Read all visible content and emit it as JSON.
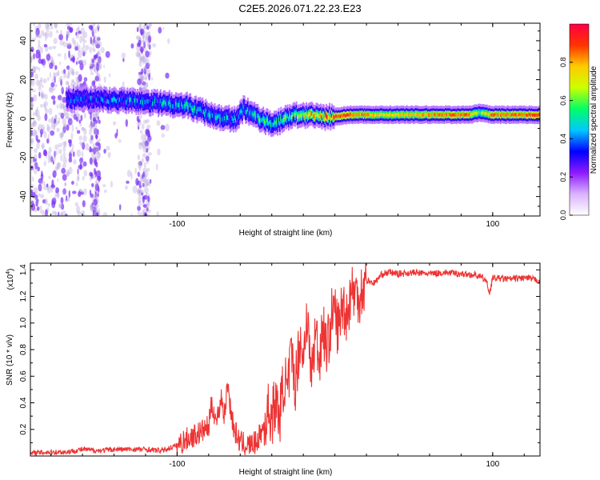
{
  "figure_title": "C2E5.2026.071.22.23.E23",
  "colors": {
    "snr_line": "#ee3333",
    "axis": "#000000",
    "noise": "#b39ddb",
    "noise_dark": "#7b2ff7"
  },
  "colormap": [
    "#ffffff",
    "#d9b3ff",
    "#8c1aff",
    "#0000ff",
    "#00c8ff",
    "#00ff66",
    "#ccff00",
    "#ffcc00",
    "#ff3300",
    "#ff0044"
  ],
  "chart_data": [
    {
      "type": "heatmap",
      "title": "",
      "xlabel": "Height of straight line (km)",
      "ylabel": "Frequency (Hz)",
      "xlim": [
        -193,
        130
      ],
      "ylim": [
        -50,
        49
      ],
      "xticks": [
        -100,
        100
      ],
      "xtick_labels": [
        "-100",
        "100"
      ],
      "yticks": [
        -40,
        -20,
        0,
        20,
        40
      ],
      "ytick_labels": [
        "-40",
        "-20",
        "0",
        "20",
        "40"
      ],
      "colorbar": {
        "label": "Normalized spectral amplitude",
        "range": [
          0,
          1
        ],
        "ticks": [
          0.0,
          0.2,
          0.4,
          0.6,
          0.8
        ],
        "tick_labels": [
          "0.0",
          "0.2",
          "0.4",
          "0.6",
          "0.8"
        ]
      },
      "ridge": {
        "description": "frequency of peak spectral amplitude vs height",
        "x": [
          -170,
          -150,
          -130,
          -110,
          -95,
          -85,
          -75,
          -68,
          -62,
          -58,
          -52,
          -45,
          -38,
          -30,
          -22,
          -10,
          0,
          10,
          30,
          50,
          70,
          85,
          92,
          100,
          115,
          130
        ],
        "y": [
          10,
          10,
          9,
          8,
          7,
          4,
          1,
          0,
          0,
          5,
          2,
          -1,
          -3,
          1,
          2,
          1,
          1,
          2,
          2,
          2,
          2,
          2,
          3,
          2,
          2,
          2
        ],
        "amplitude": [
          0.35,
          0.4,
          0.45,
          0.45,
          0.5,
          0.45,
          0.5,
          0.45,
          0.4,
          0.45,
          0.5,
          0.55,
          0.5,
          0.6,
          0.7,
          0.85,
          0.9,
          0.85,
          0.75,
          0.8,
          0.85,
          0.85,
          0.6,
          0.85,
          0.85,
          0.9
        ]
      },
      "noise_region_x": [
        -193,
        -105
      ]
    },
    {
      "type": "line",
      "title": "",
      "xlabel": "Height of straight line (km)",
      "ylabel": "SNR (10 * v/v)",
      "y_multiplier_label": "(x10",
      "y_multiplier_exp": "4",
      "y_multiplier_close": ")",
      "xlim": [
        -193,
        130
      ],
      "ylim": [
        0,
        1.45
      ],
      "xticks": [
        -100,
        100
      ],
      "xtick_labels": [
        "-100",
        "100"
      ],
      "yticks": [
        0.2,
        0.4,
        0.6,
        0.8,
        1.0,
        1.2,
        1.4
      ],
      "ytick_labels": [
        "0.2",
        "0.4",
        "0.6",
        "0.8",
        "1.0",
        "1.2",
        "1.4"
      ],
      "series": [
        {
          "name": "SNR",
          "x": [
            -193,
            -180,
            -170,
            -160,
            -150,
            -140,
            -130,
            -120,
            -110,
            -100,
            -95,
            -90,
            -85,
            -80,
            -78,
            -75,
            -72,
            -70,
            -68,
            -66,
            -64,
            -62,
            -60,
            -55,
            -50,
            -45,
            -42,
            -40,
            -38,
            -35,
            -32,
            -30,
            -28,
            -25,
            -22,
            -20,
            -18,
            -15,
            -12,
            -10,
            -8,
            -5,
            -2,
            0,
            2,
            5,
            8,
            10,
            15,
            20,
            25,
            30,
            35,
            40,
            50,
            60,
            70,
            80,
            90,
            95,
            97,
            98,
            100,
            110,
            120,
            130
          ],
          "y": [
            0.02,
            0.03,
            0.03,
            0.05,
            0.04,
            0.05,
            0.05,
            0.05,
            0.04,
            0.08,
            0.12,
            0.15,
            0.18,
            0.22,
            0.4,
            0.25,
            0.45,
            0.3,
            0.55,
            0.35,
            0.2,
            0.15,
            0.1,
            0.08,
            0.1,
            0.22,
            0.35,
            0.28,
            0.4,
            0.3,
            0.6,
            0.45,
            0.75,
            0.55,
            0.9,
            0.7,
            1.1,
            0.6,
            0.95,
            0.7,
            1.0,
            0.8,
            1.05,
            1.1,
            0.95,
            1.15,
            1.05,
            1.25,
            1.2,
            1.32,
            1.3,
            1.37,
            1.38,
            1.37,
            1.38,
            1.37,
            1.38,
            1.37,
            1.36,
            1.33,
            1.28,
            1.22,
            1.34,
            1.33,
            1.34,
            1.32
          ]
        }
      ]
    }
  ]
}
